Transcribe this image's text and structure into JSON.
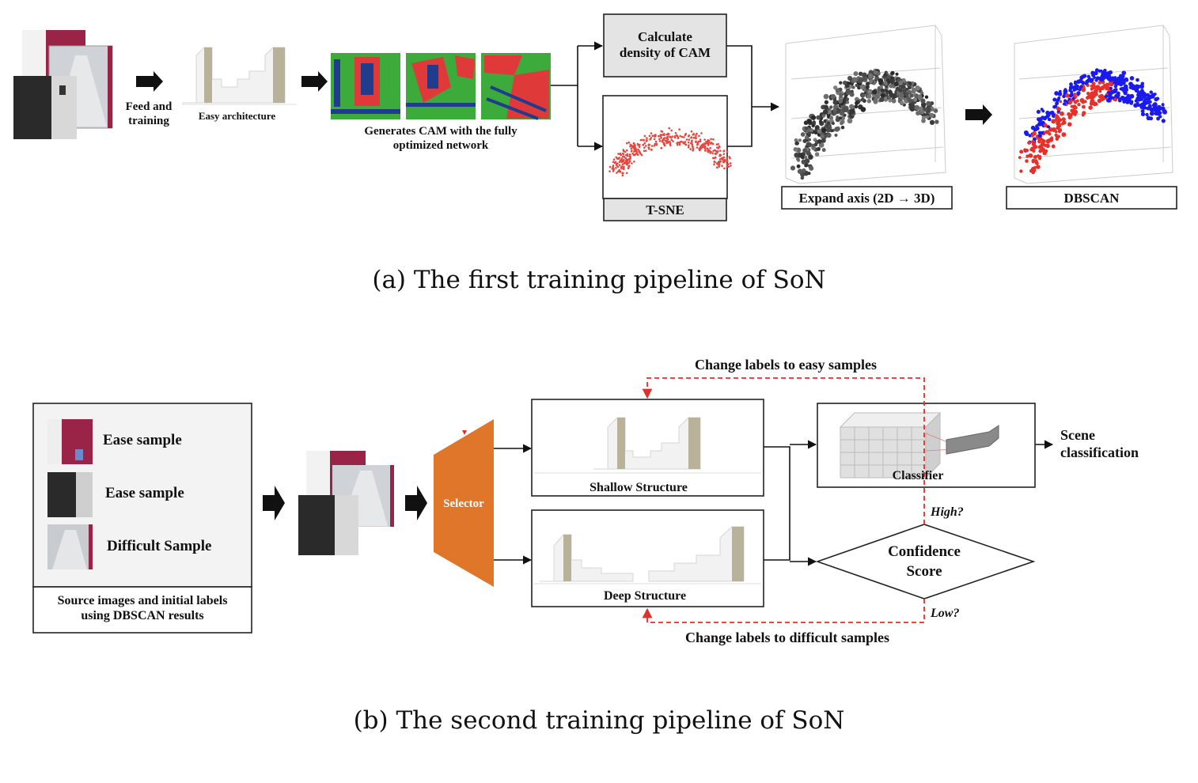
{
  "panel_a": {
    "step_feed": "Feed and\ntraining",
    "step_easy_arch": "Easy architecture",
    "step_cam": "Generates CAM with the fully\noptimized network",
    "box_density": "Calculate\ndensity of CAM",
    "box_tsne": "T-SNE",
    "box_expand": "Expand axis (2D → 3D)",
    "box_dbscan": "DBSCAN",
    "caption": "(a)  The first training pipeline of SoN"
  },
  "panel_b": {
    "samples": [
      {
        "label": "Ease sample"
      },
      {
        "label": "Ease sample"
      },
      {
        "label": "Difficult Sample"
      }
    ],
    "source_caption": "Source images and initial labels\nusing DBSCAN results",
    "selector": "Selector",
    "shallow": "Shallow Structure",
    "deep": "Deep Structure",
    "classifier": "Classifier",
    "scene": "Scene\nclassification",
    "confidence": "Confidence\nScore",
    "high": "High?",
    "low": "Low?",
    "to_easy": "Change labels to easy samples",
    "to_difficult": "Change labels to difficult samples",
    "caption": "(b)  The second training pipeline of SoN"
  },
  "colors": {
    "selector": "#e0762a",
    "feedback_arrow": "#e0302a",
    "cam_green": "#3cab3c",
    "cam_red": "#e0393a",
    "cam_blue": "#1f3d8c",
    "tsne": "#e7463f",
    "cluster_blue": "#1a1aee",
    "cluster_red": "#e8302a",
    "door_magenta": "#9a2348"
  }
}
